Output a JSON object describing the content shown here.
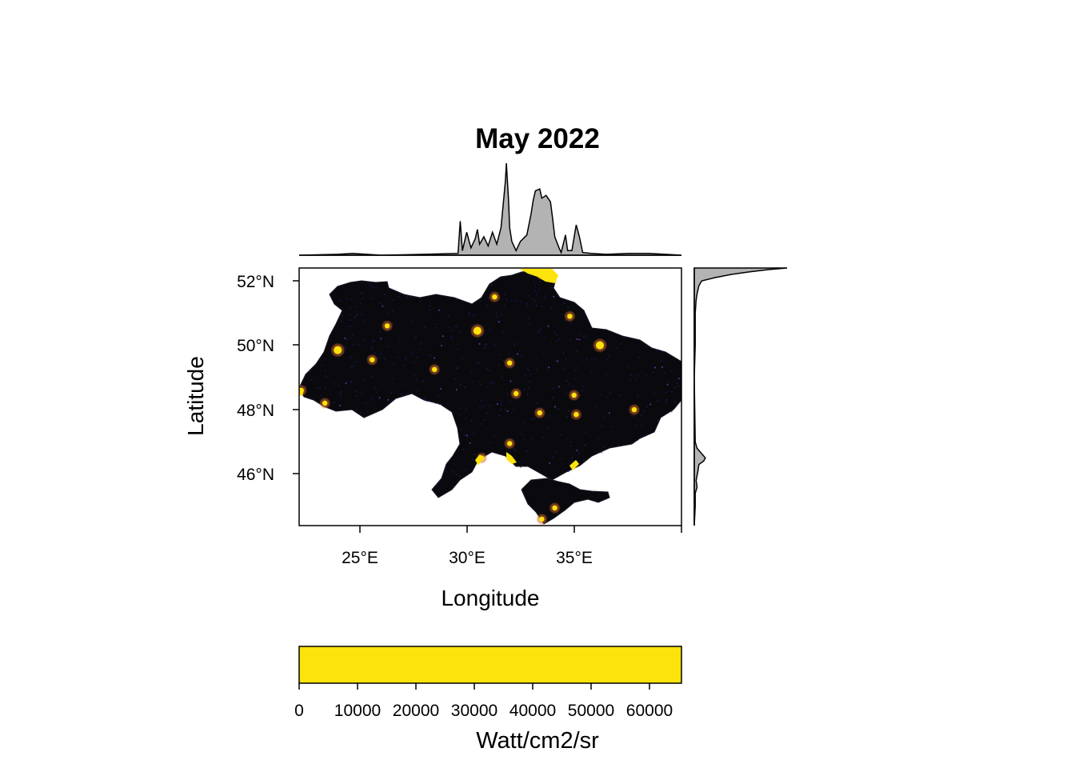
{
  "title": "May 2022",
  "x_axis": {
    "label": "Longitude",
    "ticks": [
      "25°E",
      "30°E",
      "35°E"
    ]
  },
  "y_axis": {
    "label": "Latitude",
    "ticks": [
      "52°N",
      "50°N",
      "48°N",
      "46°N"
    ]
  },
  "colorbar": {
    "label": "Watt/cm2/sr",
    "ticks": [
      "0",
      "10000",
      "20000",
      "30000",
      "40000",
      "50000",
      "60000"
    ],
    "color": "#FDE30C"
  },
  "colors": {
    "land": "#0a0a0e",
    "light_low": "#1b1b6e",
    "light_high": "#FDE30C",
    "histogram_fill": "#b3b3b3"
  },
  "chart_data": {
    "type": "heatmap",
    "variable": "night-time radiance",
    "x_range_deg": [
      22.2,
      40.0
    ],
    "y_range_deg": [
      44.4,
      52.4
    ],
    "value_range": [
      0,
      65535
    ],
    "bright_spots": [
      {
        "lon": 30.5,
        "lat": 50.45
      },
      {
        "lon": 24.0,
        "lat": 49.85
      },
      {
        "lon": 36.2,
        "lat": 50.0
      },
      {
        "lon": 37.8,
        "lat": 48.0
      },
      {
        "lon": 35.0,
        "lat": 48.45
      },
      {
        "lon": 30.7,
        "lat": 46.5
      },
      {
        "lon": 33.5,
        "lat": 44.6
      },
      {
        "lon": 34.1,
        "lat": 44.95
      },
      {
        "lon": 32.0,
        "lat": 46.95
      },
      {
        "lon": 35.1,
        "lat": 47.85
      },
      {
        "lon": 33.4,
        "lat": 47.9
      },
      {
        "lon": 32.3,
        "lat": 48.5
      },
      {
        "lon": 28.5,
        "lat": 49.25
      },
      {
        "lon": 25.6,
        "lat": 49.55
      },
      {
        "lon": 31.3,
        "lat": 51.5
      },
      {
        "lon": 34.8,
        "lat": 50.9
      },
      {
        "lon": 33.5,
        "lat": 52.2
      },
      {
        "lon": 32.0,
        "lat": 49.45
      },
      {
        "lon": 26.3,
        "lat": 50.6
      },
      {
        "lon": 23.4,
        "lat": 48.2
      },
      {
        "lon": 22.3,
        "lat": 48.6
      }
    ],
    "longitude_profile": [
      [
        22.2,
        0.0
      ],
      [
        24.0,
        0.01
      ],
      [
        24.7,
        0.02
      ],
      [
        26.0,
        0.0
      ],
      [
        28.0,
        0.01
      ],
      [
        29.6,
        0.02
      ],
      [
        29.7,
        0.37
      ],
      [
        29.8,
        0.05
      ],
      [
        30.0,
        0.25
      ],
      [
        30.2,
        0.08
      ],
      [
        30.4,
        0.18
      ],
      [
        30.5,
        0.28
      ],
      [
        30.6,
        0.12
      ],
      [
        30.8,
        0.2
      ],
      [
        31.0,
        0.1
      ],
      [
        31.2,
        0.25
      ],
      [
        31.4,
        0.12
      ],
      [
        31.6,
        0.3
      ],
      [
        31.7,
        0.55
      ],
      [
        31.8,
        0.8
      ],
      [
        31.85,
        1.0
      ],
      [
        31.95,
        0.6
      ],
      [
        32.0,
        0.3
      ],
      [
        32.1,
        0.15
      ],
      [
        32.3,
        0.05
      ],
      [
        32.5,
        0.15
      ],
      [
        32.8,
        0.22
      ],
      [
        33.0,
        0.45
      ],
      [
        33.1,
        0.6
      ],
      [
        33.2,
        0.7
      ],
      [
        33.4,
        0.72
      ],
      [
        33.5,
        0.62
      ],
      [
        33.7,
        0.65
      ],
      [
        33.9,
        0.58
      ],
      [
        34.0,
        0.4
      ],
      [
        34.1,
        0.2
      ],
      [
        34.3,
        0.08
      ],
      [
        34.4,
        0.03
      ],
      [
        34.6,
        0.22
      ],
      [
        34.7,
        0.05
      ],
      [
        34.9,
        0.05
      ],
      [
        35.1,
        0.33
      ],
      [
        35.25,
        0.2
      ],
      [
        35.4,
        0.03
      ],
      [
        35.8,
        0.02
      ],
      [
        36.5,
        0.01
      ],
      [
        37.5,
        0.02
      ],
      [
        38.5,
        0.02
      ],
      [
        40.0,
        0.0
      ]
    ],
    "latitude_profile": [
      [
        52.4,
        1.0
      ],
      [
        52.35,
        0.8
      ],
      [
        52.28,
        0.6
      ],
      [
        52.2,
        0.4
      ],
      [
        52.1,
        0.22
      ],
      [
        52.0,
        0.08
      ],
      [
        51.85,
        0.05
      ],
      [
        51.6,
        0.03
      ],
      [
        51.4,
        0.02
      ],
      [
        51.0,
        0.01
      ],
      [
        50.0,
        0.01
      ],
      [
        49.0,
        0.0
      ],
      [
        47.0,
        0.01
      ],
      [
        46.8,
        0.03
      ],
      [
        46.7,
        0.06
      ],
      [
        46.6,
        0.09
      ],
      [
        46.5,
        0.12
      ],
      [
        46.4,
        0.1
      ],
      [
        46.3,
        0.05
      ],
      [
        46.1,
        0.04
      ],
      [
        45.8,
        0.02
      ],
      [
        45.6,
        0.03
      ],
      [
        45.4,
        0.01
      ],
      [
        45.0,
        0.01
      ],
      [
        44.4,
        0.0
      ]
    ]
  }
}
